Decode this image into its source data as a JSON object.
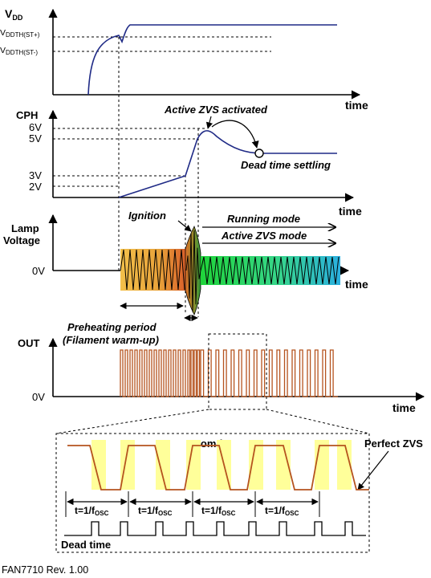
{
  "colors": {
    "supply_curve": "#1f2a86",
    "out_pulse": "#b5531e",
    "zvs_highlight": "#ffff9a"
  },
  "vdd_panel": {
    "axis_label_main": "V",
    "axis_label_sub": "DD",
    "threshold_high_main": "V",
    "threshold_high_sub": "DDTH(ST+)",
    "threshold_low_main": "V",
    "threshold_low_sub": "DDTH(ST-)",
    "time_label": "time"
  },
  "cph_panel": {
    "axis_label": "CPH",
    "ticks": [
      "6V",
      "5V",
      "3V",
      "2V"
    ],
    "active_zvs_label": "Active ZVS activated",
    "dead_time_settling_label": "Dead time settling",
    "time_label": "time"
  },
  "lamp_panel": {
    "axis_label_line1": "Lamp",
    "axis_label_line2": "Voltage",
    "zero_label": "0V",
    "ignition_label": "Ignition",
    "running_mode_label": "Running mode",
    "active_zvs_mode_label": "Active ZVS mode",
    "time_label": "time"
  },
  "preheat": {
    "line1": "Preheating period",
    "line2": "(Filament warm-up)"
  },
  "out_panel": {
    "axis_label": "OUT",
    "zero_label": "0V",
    "time_label": "time"
  },
  "zoom_panel": {
    "zoom_label": "Zoom-in",
    "perfect_zvs_label": "Perfect ZVS",
    "period_main": "t=1/f",
    "period_sub": "OSC",
    "dead_time_label": "Dead time"
  },
  "footer": {
    "revision": "FAN7710 Rev. 1.00"
  }
}
